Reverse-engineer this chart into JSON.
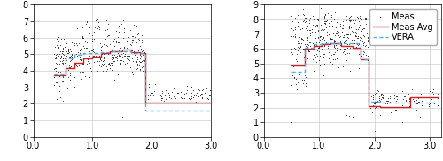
{
  "left": {
    "ylim": [
      0.0,
      8.0
    ],
    "yticks": [
      0.0,
      1.0,
      2.0,
      3.0,
      4.0,
      5.0,
      6.0,
      7.0,
      8.0
    ],
    "xlim": [
      0.0,
      3.0
    ],
    "xticks": [
      0.0,
      1.0,
      2.0,
      3.0
    ],
    "xticklabels": [
      "0.0",
      "1.0",
      "2.0",
      "3.0"
    ],
    "meas_avg_x": [
      0.35,
      0.55,
      0.55,
      0.7,
      0.7,
      0.85,
      0.85,
      1.0,
      1.0,
      1.15,
      1.15,
      1.3,
      1.3,
      1.5,
      1.5,
      1.65,
      1.65,
      1.8,
      1.8,
      1.9,
      1.9,
      3.0
    ],
    "meas_avg_y": [
      3.75,
      3.75,
      4.15,
      4.15,
      4.5,
      4.5,
      4.75,
      4.75,
      4.85,
      4.85,
      5.05,
      5.05,
      5.2,
      5.2,
      5.3,
      5.3,
      5.15,
      5.15,
      5.05,
      5.05,
      2.05,
      2.05
    ],
    "vera_x": [
      0.35,
      0.55,
      0.55,
      0.7,
      0.7,
      0.85,
      0.85,
      1.0,
      1.0,
      1.15,
      1.15,
      1.3,
      1.3,
      1.5,
      1.5,
      1.65,
      1.65,
      1.8,
      1.8,
      1.9,
      1.9,
      3.0
    ],
    "vera_y": [
      3.8,
      3.8,
      4.75,
      4.75,
      4.95,
      4.95,
      5.05,
      5.05,
      5.1,
      5.1,
      5.15,
      5.15,
      5.2,
      5.2,
      5.2,
      5.2,
      5.1,
      5.1,
      5.05,
      5.05,
      1.6,
      1.6
    ],
    "seed": 42
  },
  "right": {
    "ylim": [
      0.0,
      9.0
    ],
    "yticks": [
      0.0,
      1.0,
      2.0,
      3.0,
      4.0,
      5.0,
      6.0,
      7.0,
      8.0,
      9.0
    ],
    "xlim": [
      0.0,
      3.2
    ],
    "xticks": [
      0.0,
      1.0,
      2.0,
      3.0
    ],
    "xticklabels": [
      "0.0",
      "1.0",
      "2.0",
      "3.0"
    ],
    "meas_avg_x": [
      0.5,
      0.75,
      0.75,
      0.9,
      0.9,
      1.05,
      1.05,
      1.2,
      1.2,
      1.4,
      1.4,
      1.6,
      1.6,
      1.75,
      1.75,
      1.9,
      1.9,
      2.1,
      2.1,
      2.65,
      2.65,
      3.15
    ],
    "meas_avg_y": [
      4.85,
      4.85,
      6.0,
      6.0,
      6.2,
      6.2,
      6.3,
      6.3,
      6.35,
      6.35,
      6.2,
      6.2,
      6.1,
      6.1,
      5.3,
      5.3,
      2.1,
      2.1,
      2.05,
      2.05,
      2.7,
      2.7
    ],
    "vera_x": [
      0.5,
      0.75,
      0.75,
      0.9,
      0.9,
      1.05,
      1.05,
      1.2,
      1.2,
      1.4,
      1.4,
      1.6,
      1.6,
      1.75,
      1.75,
      1.9,
      1.9,
      2.1,
      2.1,
      2.65,
      2.65,
      3.15
    ],
    "vera_y": [
      4.45,
      4.45,
      6.05,
      6.05,
      6.3,
      6.3,
      6.4,
      6.4,
      6.4,
      6.4,
      6.4,
      6.4,
      6.4,
      6.4,
      5.3,
      5.3,
      2.4,
      2.4,
      2.35,
      2.35,
      2.35,
      2.35
    ],
    "seed": 123
  },
  "meas_color": "#333333",
  "meas_avg_color": "#cc2222",
  "vera_color": "#55aaee",
  "meas_marker": ".",
  "meas_markersize": 2.0,
  "tick_fontsize": 7,
  "legend_fontsize": 7
}
